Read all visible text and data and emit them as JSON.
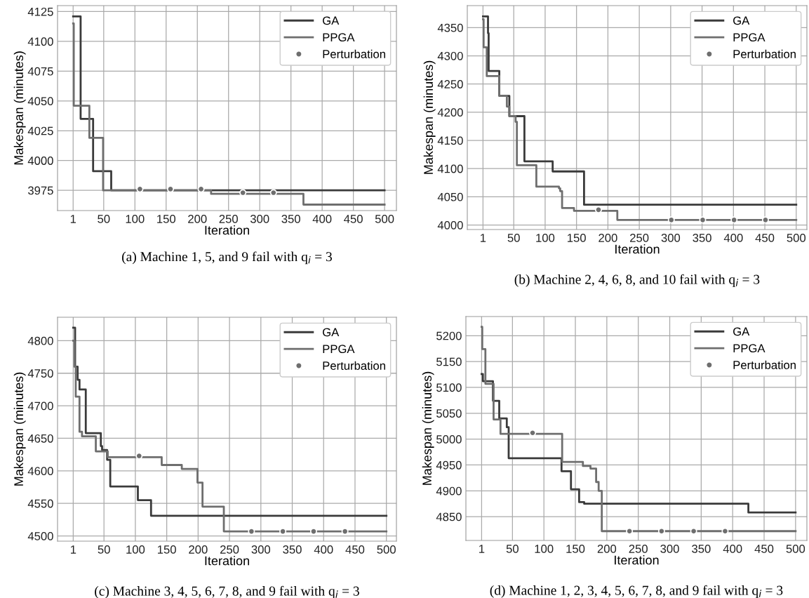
{
  "chart_data": [
    {
      "type": "step",
      "title": "(a) Machine 1, 5, and 9 fail with q$_{i}$ = 3",
      "xlabel": "Iteration",
      "ylabel": "Makespan (minutes)",
      "xlim": [
        -24,
        519
      ],
      "ylim": [
        3958,
        4130
      ],
      "xticks": [
        1,
        50,
        100,
        150,
        200,
        250,
        300,
        350,
        400,
        450,
        500
      ],
      "yticks": [
        3975,
        4000,
        4025,
        4050,
        4075,
        4100,
        4125
      ],
      "grid": true,
      "legend": "top right",
      "series": [
        {
          "name": "GA",
          "color": "#3a3a3a",
          "x": [
            1,
            13,
            33,
            62,
            500
          ],
          "values": [
            4121,
            4035,
            3991,
            3975,
            3975
          ]
        },
        {
          "name": "PPGA",
          "color": "#6e6e6e",
          "x": [
            1,
            2,
            27,
            49,
            222,
            370,
            500
          ],
          "values": [
            4115,
            4046,
            4019,
            3975,
            3972,
            3963,
            3963
          ]
        },
        {
          "name": "Perturbation",
          "type": "scatter",
          "marker": "circle",
          "color": "#6e6e6e",
          "x": [
            108,
            157,
            206,
            273,
            322
          ],
          "values": [
            3976,
            3976,
            3976,
            3973,
            3973
          ]
        }
      ]
    },
    {
      "type": "step",
      "title": "(b) Machine 2, 4, 6, 8, and 10 fail with q$_{i}$ = 3",
      "xlabel": "Iteration",
      "ylabel": "Makespan (minutes)",
      "xlim": [
        -24,
        517
      ],
      "ylim": [
        3992,
        4389
      ],
      "xticks": [
        1,
        50,
        100,
        150,
        200,
        250,
        300,
        350,
        400,
        450,
        500
      ],
      "yticks": [
        4000,
        4050,
        4100,
        4150,
        4200,
        4250,
        4300,
        4350
      ],
      "grid": true,
      "legend": "top right",
      "series": [
        {
          "name": "GA",
          "color": "#3a3a3a",
          "x": [
            1,
            9,
            10,
            27,
            43,
            67,
            112,
            162,
            500
          ],
          "values": [
            4370,
            4340,
            4273,
            4229,
            4193,
            4113,
            4095,
            4036,
            4036
          ]
        },
        {
          "name": "PPGA",
          "color": "#6e6e6e",
          "x": [
            1,
            2,
            7,
            27,
            39,
            43,
            53,
            55,
            86,
            122,
            124,
            127,
            146,
            215,
            500
          ],
          "values": [
            4365,
            4315,
            4264,
            4229,
            4210,
            4193,
            4183,
            4106,
            4068,
            4065,
            4060,
            4030,
            4025,
            4009,
            4009
          ]
        },
        {
          "name": "Perturbation",
          "type": "scatter",
          "marker": "circle",
          "color": "#6e6e6e",
          "x": [
            185,
            301,
            351,
            401,
            451
          ],
          "values": [
            4027,
            4009,
            4009,
            4009,
            4009
          ]
        }
      ]
    },
    {
      "type": "step",
      "title": "(c) Machine 3, 4, 5, 6, 7, 8, and 9 fail with q$_{i}$ = 3",
      "xlabel": "Iteration",
      "ylabel": "Makespan (minutes)",
      "xlim": [
        -24,
        516
      ],
      "ylim": [
        4492,
        4836
      ],
      "xticks": [
        1,
        50,
        100,
        150,
        200,
        250,
        300,
        350,
        400,
        450,
        500
      ],
      "yticks": [
        4500,
        4550,
        4600,
        4650,
        4700,
        4750,
        4800
      ],
      "grid": true,
      "legend": "top right",
      "series": [
        {
          "name": "GA",
          "color": "#3a3a3a",
          "x": [
            1,
            4,
            8,
            11,
            21,
            45,
            47,
            55,
            60,
            104,
            125,
            500
          ],
          "values": [
            4820,
            4760,
            4740,
            4725,
            4658,
            4638,
            4632,
            4617,
            4576,
            4555,
            4531,
            4531
          ]
        },
        {
          "name": "PPGA",
          "color": "#6e6e6e",
          "x": [
            1,
            3,
            5,
            11,
            15,
            37,
            56,
            142,
            174,
            199,
            207,
            241,
            500
          ],
          "values": [
            4800,
            4760,
            4714,
            4660,
            4653,
            4630,
            4621,
            4609,
            4603,
            4582,
            4545,
            4507,
            4507
          ]
        },
        {
          "name": "Perturbation",
          "type": "scatter",
          "marker": "circle",
          "color": "#6e6e6e",
          "x": [
            106,
            285,
            335,
            384,
            434
          ],
          "values": [
            4623,
            4507,
            4507,
            4507,
            4507
          ]
        }
      ]
    },
    {
      "type": "step",
      "title": "(d) Machine 1, 2, 3, 4, 5, 6, 7, 8, and 9 fail with q$_{i}$ = 3",
      "xlabel": "Iteration",
      "ylabel": "Makespan (minutes)",
      "xlim": [
        -24,
        518
      ],
      "ylim": [
        4804,
        5237
      ],
      "xticks": [
        1,
        50,
        100,
        150,
        200,
        250,
        300,
        350,
        400,
        450,
        500
      ],
      "yticks": [
        4850,
        4900,
        4950,
        5000,
        5050,
        5100,
        5150,
        5200
      ],
      "grid": true,
      "legend": "top right",
      "series": [
        {
          "name": "GA",
          "color": "#3a3a3a",
          "x": [
            1,
            3,
            19,
            29,
            41,
            44,
            128,
            143,
            156,
            164,
            425,
            500
          ],
          "values": [
            5126,
            5112,
            5074,
            5040,
            5023,
            4963,
            4938,
            4903,
            4878,
            4875,
            4858,
            4858
          ]
        },
        {
          "name": "PPGA",
          "color": "#6e6e6e",
          "x": [
            1,
            2,
            7,
            20,
            31,
            129,
            162,
            174,
            183,
            187,
            192,
            500
          ],
          "values": [
            5217,
            5174,
            5107,
            5038,
            5010,
            4956,
            4948,
            4943,
            4917,
            4900,
            4822,
            4822
          ]
        },
        {
          "name": "Perturbation",
          "type": "scatter",
          "marker": "circle",
          "color": "#6e6e6e",
          "x": [
            82,
            236,
            287,
            338,
            388
          ],
          "values": [
            5012,
            4822,
            4822,
            4822,
            4822
          ]
        }
      ]
    }
  ]
}
